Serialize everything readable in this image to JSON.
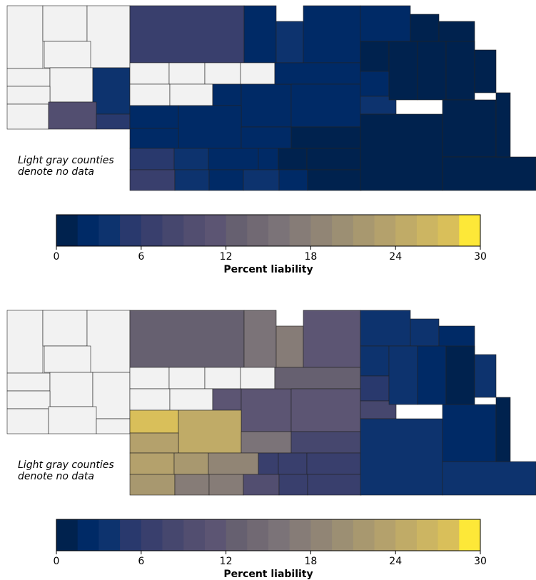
{
  "colors": [
    "#00224e",
    "#002a66",
    "#0d336e",
    "#29396d",
    "#393f6d",
    "#46476e",
    "#524e70",
    "#5c5573",
    "#666070",
    "#716973",
    "#7b7378",
    "#867c77",
    "#918575",
    "#9c8f73",
    "#a8986f",
    "#b4a16c",
    "#c0ab67",
    "#ccb562",
    "#d9bf5a",
    "#fde838"
  ],
  "no_data_color": "#f2f2f2",
  "panels": [
    {
      "annotation": [
        "Light gray counties",
        "denote no data"
      ],
      "county_values": [
        null,
        null,
        null,
        null,
        null,
        null,
        3.5,
        null,
        null,
        10,
        4.5,
        6,
        1.5,
        4,
        1.5,
        2,
        1,
        0.5,
        null,
        null,
        null,
        null,
        null,
        null,
        2,
        2,
        2,
        2,
        2,
        2,
        2,
        1,
        2.5,
        5,
        4,
        2,
        2,
        1,
        1,
        6,
        3,
        2,
        3,
        2,
        1,
        1,
        2,
        3,
        1,
        1,
        1,
        0.5,
        1,
        1,
        0.5,
        0.5
      ],
      "colorbar": {
        "label": "Percent liability",
        "lim": [
          0,
          30
        ],
        "ticks": [
          0,
          6,
          12,
          18,
          24,
          30
        ]
      }
    },
    {
      "annotation": [
        "Light gray counties",
        "denote no data"
      ],
      "county_values": [
        null,
        null,
        null,
        null,
        null,
        null,
        null,
        null,
        null,
        null,
        null,
        12.5,
        16,
        17,
        11,
        3,
        3,
        2,
        null,
        null,
        null,
        null,
        null,
        null,
        11,
        11,
        13,
        11.5,
        27,
        24,
        16,
        8,
        23,
        23,
        22,
        18,
        7,
        6,
        6,
        21,
        17,
        17,
        9,
        6,
        7,
        3,
        5,
        8,
        3,
        2,
        1,
        3,
        3,
        2,
        3,
        1
      ],
      "colorbar": {
        "label": "Percent liability",
        "lim": [
          0,
          30
        ],
        "ticks": [
          0,
          6,
          12,
          18,
          24,
          30
        ]
      }
    }
  ]
}
